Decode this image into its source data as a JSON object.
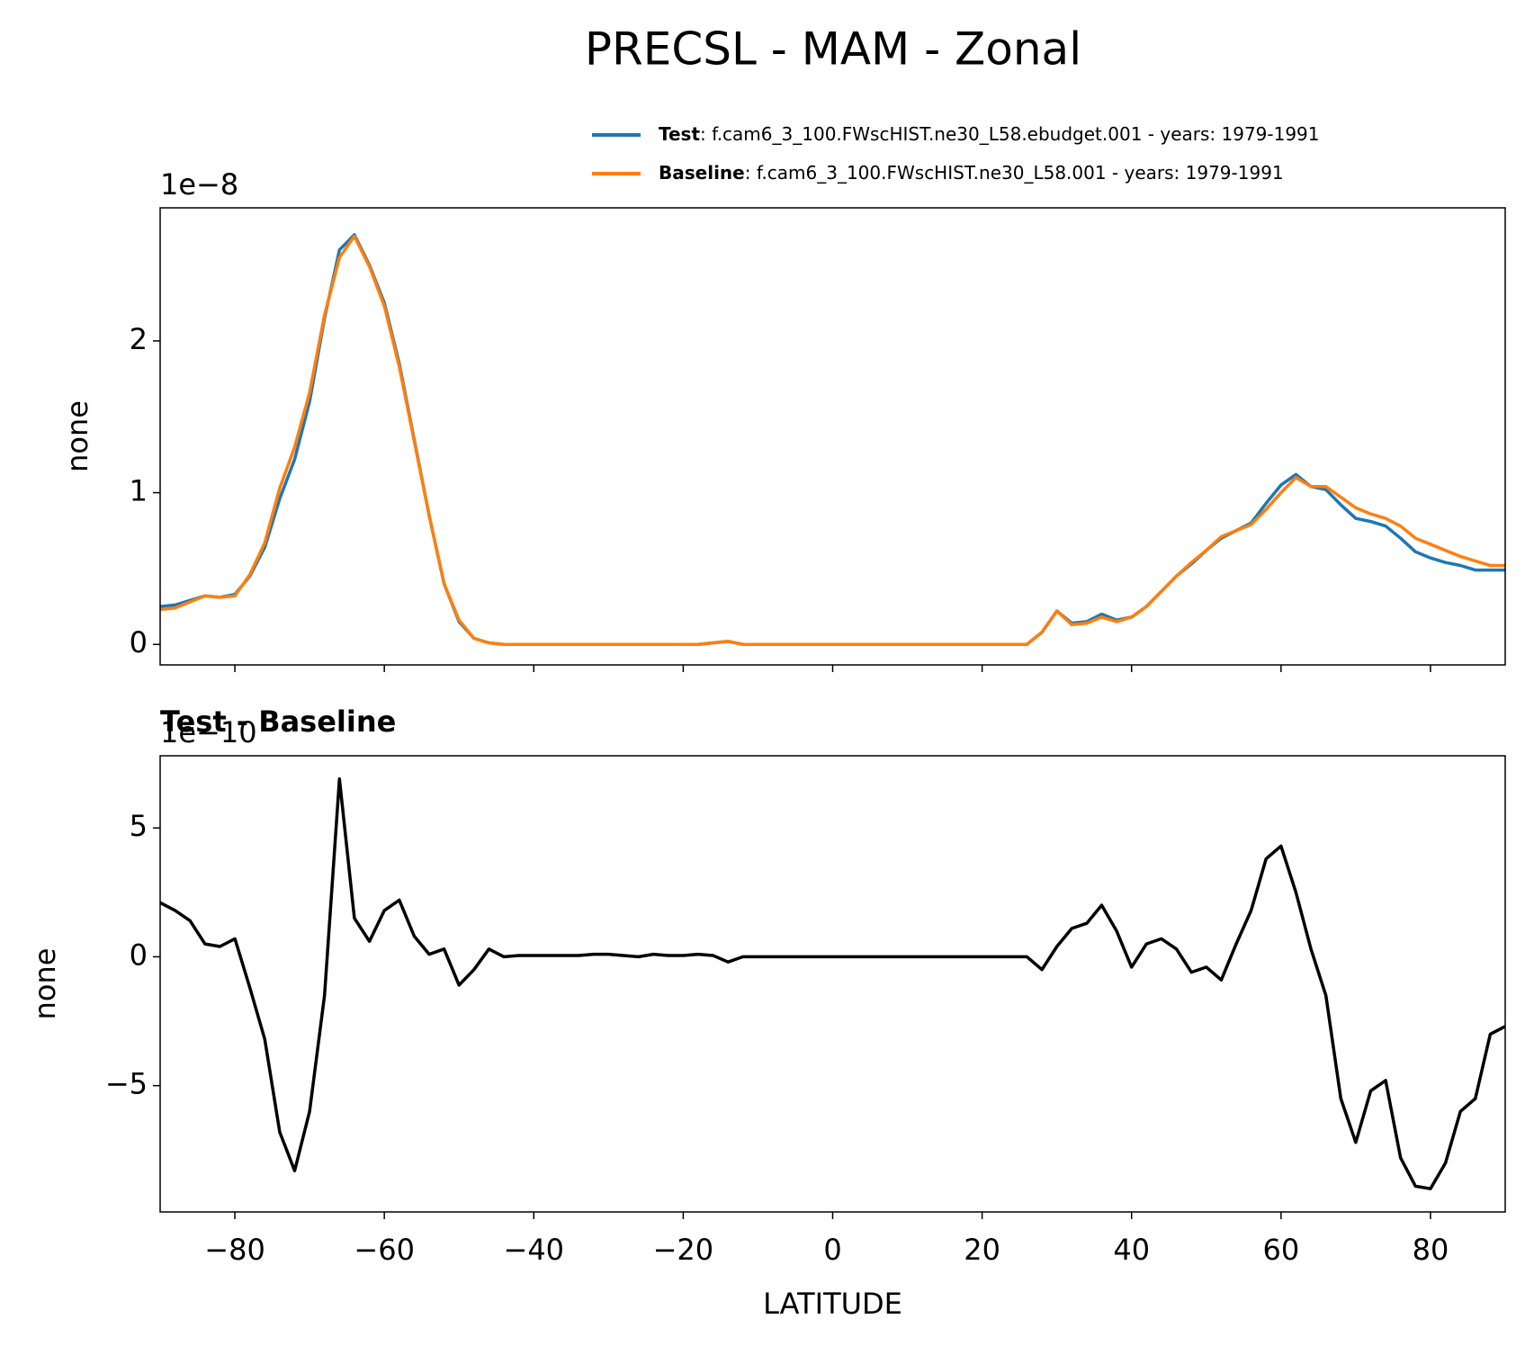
{
  "title": "PRECSL - MAM - Zonal",
  "chart_data": [
    {
      "type": "line",
      "offset_label": "1e−8",
      "ylabel": "none",
      "x": [
        -90,
        -88,
        -86,
        -84,
        -82,
        -80,
        -78,
        -76,
        -74,
        -72,
        -70,
        -68,
        -66,
        -64,
        -62,
        -60,
        -58,
        -56,
        -54,
        -52,
        -50,
        -48,
        -46,
        -44,
        -42,
        -40,
        -38,
        -36,
        -34,
        -32,
        -30,
        -28,
        -26,
        -24,
        -22,
        -20,
        -18,
        -16,
        -14,
        -12,
        -10,
        -8,
        -6,
        -4,
        -2,
        0,
        2,
        4,
        6,
        8,
        10,
        12,
        14,
        16,
        18,
        20,
        22,
        24,
        26,
        28,
        30,
        32,
        34,
        36,
        38,
        40,
        42,
        44,
        46,
        48,
        50,
        52,
        54,
        56,
        58,
        60,
        62,
        64,
        66,
        68,
        70,
        72,
        74,
        76,
        78,
        80,
        82,
        84,
        86,
        88,
        90
      ],
      "series": [
        {
          "name": "Test",
          "legend_detail": ": f.cam6_3_100.FWscHIST.ne30_L58.ebudget.001 - years: 1979-1991",
          "color": "#1f77b4",
          "values": [
            0.25,
            0.26,
            0.29,
            0.32,
            0.31,
            0.33,
            0.45,
            0.64,
            0.96,
            1.22,
            1.6,
            2.15,
            2.6,
            2.7,
            2.5,
            2.25,
            1.85,
            1.35,
            0.85,
            0.4,
            0.15,
            0.04,
            0.01,
            0,
            0,
            0,
            0,
            0,
            0,
            0,
            0,
            0,
            0,
            0,
            0,
            0,
            0,
            0.01,
            0.02,
            0,
            0,
            0,
            0,
            0,
            0,
            0,
            0,
            0,
            0,
            0,
            0,
            0,
            0,
            0,
            0,
            0,
            0,
            0,
            0,
            0.08,
            0.22,
            0.14,
            0.15,
            0.2,
            0.16,
            0.18,
            0.25,
            0.35,
            0.45,
            0.53,
            0.62,
            0.7,
            0.75,
            0.8,
            0.93,
            1.05,
            1.12,
            1.04,
            1.02,
            0.92,
            0.83,
            0.81,
            0.78,
            0.7,
            0.61,
            0.57,
            0.54,
            0.52,
            0.49,
            0.49,
            0.49
          ]
        },
        {
          "name": "Baseline",
          "legend_detail": ": f.cam6_3_100.FWscHIST.ne30_L58.001 - years: 1979-1991",
          "color": "#ff7f0e",
          "values": [
            0.23,
            0.24,
            0.28,
            0.32,
            0.31,
            0.32,
            0.46,
            0.67,
            1.03,
            1.3,
            1.66,
            2.17,
            2.55,
            2.69,
            2.49,
            2.23,
            1.83,
            1.34,
            0.85,
            0.4,
            0.16,
            0.04,
            0.01,
            0,
            0,
            0,
            0,
            0,
            0,
            0,
            0,
            0,
            0,
            0,
            0,
            0,
            0,
            0.01,
            0.02,
            0,
            0,
            0,
            0,
            0,
            0,
            0,
            0,
            0,
            0,
            0,
            0,
            0,
            0,
            0,
            0,
            0,
            0,
            0,
            0,
            0.08,
            0.22,
            0.13,
            0.14,
            0.18,
            0.15,
            0.18,
            0.25,
            0.35,
            0.45,
            0.54,
            0.62,
            0.71,
            0.75,
            0.79,
            0.89,
            1.0,
            1.1,
            1.04,
            1.04,
            0.97,
            0.9,
            0.86,
            0.83,
            0.78,
            0.7,
            0.66,
            0.62,
            0.58,
            0.55,
            0.52,
            0.52
          ]
        }
      ],
      "xlim": [
        -90,
        90
      ],
      "xticks": [
        -80,
        -60,
        -40,
        -20,
        0,
        20,
        40,
        60,
        80
      ],
      "ylim": [
        -0.135,
        2.877
      ],
      "yticks": [
        0,
        1,
        2
      ],
      "legend": "upper right"
    },
    {
      "type": "line",
      "title": "Test - Baseline",
      "offset_label": "1e−10",
      "ylabel": "none",
      "xlabel": "LATITUDE",
      "x": [
        -90,
        -88,
        -86,
        -84,
        -82,
        -80,
        -78,
        -76,
        -74,
        -72,
        -70,
        -68,
        -66,
        -64,
        -62,
        -60,
        -58,
        -56,
        -54,
        -52,
        -50,
        -48,
        -46,
        -44,
        -42,
        -40,
        -38,
        -36,
        -34,
        -32,
        -30,
        -28,
        -26,
        -24,
        -22,
        -20,
        -18,
        -16,
        -14,
        -12,
        -10,
        -8,
        -6,
        -4,
        -2,
        0,
        2,
        4,
        6,
        8,
        10,
        12,
        14,
        16,
        18,
        20,
        22,
        24,
        26,
        28,
        30,
        32,
        34,
        36,
        38,
        40,
        42,
        44,
        46,
        48,
        50,
        52,
        54,
        56,
        58,
        60,
        62,
        64,
        66,
        68,
        70,
        72,
        74,
        76,
        78,
        80,
        82,
        84,
        86,
        88,
        90
      ],
      "series": [
        {
          "color": "#000000",
          "values": [
            2.1,
            1.8,
            1.4,
            0.5,
            0.4,
            0.7,
            -1.2,
            -3.2,
            -6.8,
            -8.3,
            -6,
            -1.5,
            6.9,
            1.5,
            0.6,
            1.8,
            2.2,
            0.8,
            0.1,
            0.3,
            -1.1,
            -0.5,
            0.3,
            0,
            0.05,
            0.05,
            0.05,
            0.05,
            0.05,
            0.1,
            0.1,
            0.05,
            0,
            0.1,
            0.05,
            0.05,
            0.1,
            0.05,
            -0.2,
            0,
            0,
            0,
            0,
            0,
            0,
            0,
            0,
            0,
            0,
            0,
            0,
            0,
            0,
            0,
            0,
            0,
            0,
            0,
            0,
            -0.5,
            0.4,
            1.1,
            1.3,
            2.0,
            1.0,
            -0.4,
            0.5,
            0.7,
            0.3,
            -0.6,
            -0.4,
            -0.9,
            0.5,
            1.8,
            3.8,
            4.3,
            2.5,
            0.3,
            -1.5,
            -5.5,
            -7.2,
            -5.2,
            -4.8,
            -7.8,
            -8.9,
            -9.0,
            -8.0,
            -6.0,
            -5.5,
            -3.0,
            -2.7
          ]
        }
      ],
      "xlim": [
        -90,
        90
      ],
      "xticks": [
        {
          "value": -80,
          "label": "−80"
        },
        {
          "value": -60,
          "label": "−60"
        },
        {
          "value": -40,
          "label": "−40"
        },
        {
          "value": -20,
          "label": "−20"
        },
        0,
        20,
        40,
        60,
        80
      ],
      "ylim": [
        -9.9,
        7.8
      ],
      "yticks": [
        {
          "value": -5,
          "label": "−5"
        },
        0,
        5
      ]
    }
  ]
}
